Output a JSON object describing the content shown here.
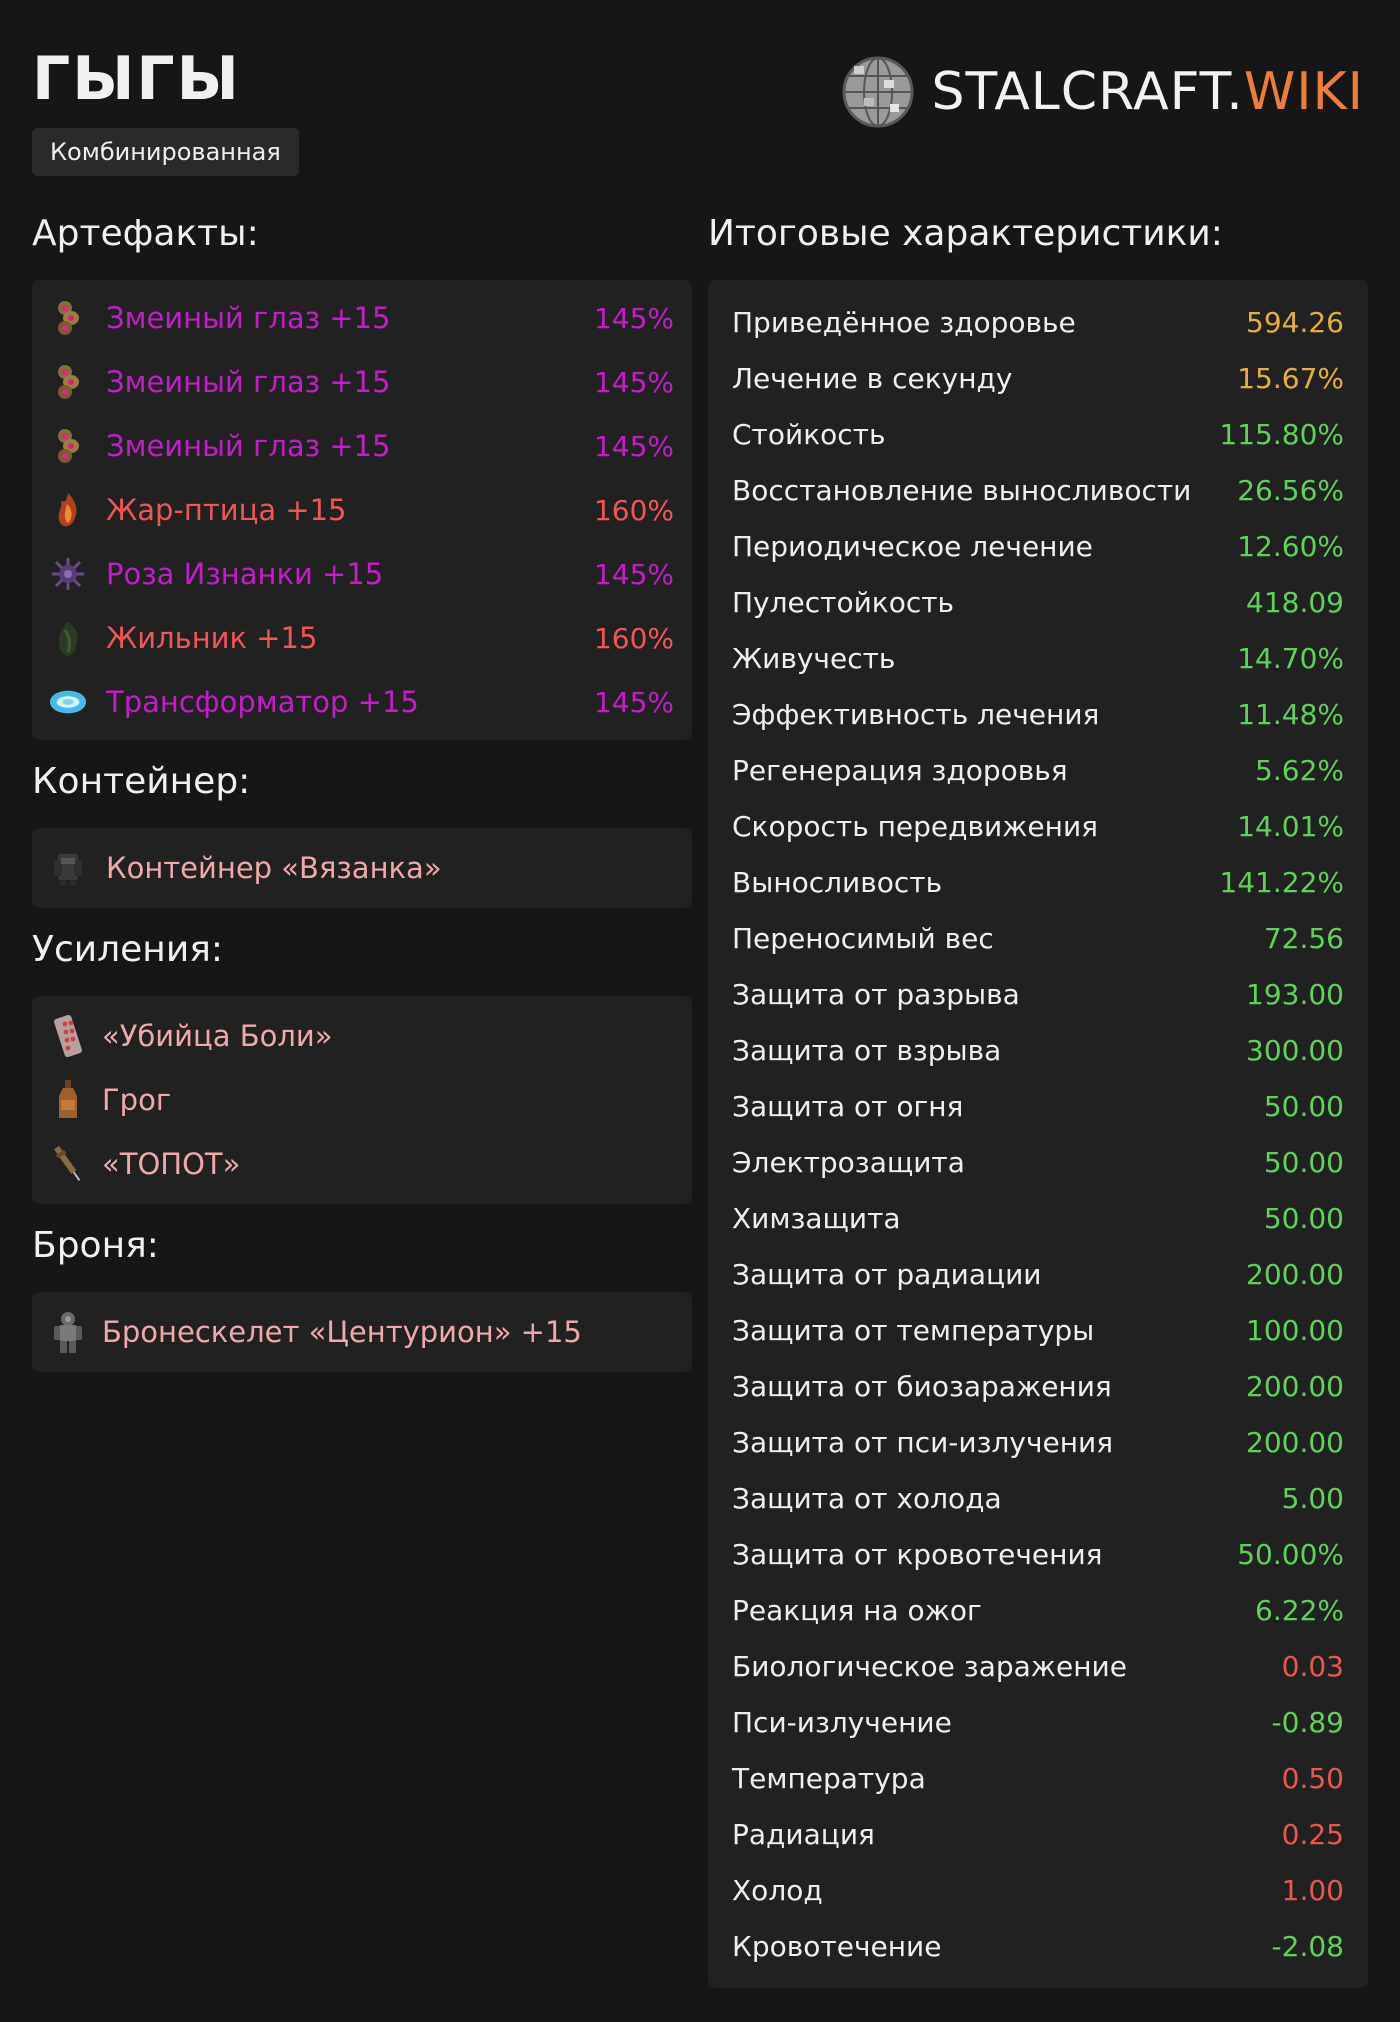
{
  "header": {
    "title": "ГЫГЫ",
    "tag": "Комбинированная",
    "logo_main": "STALCRAFT.",
    "logo_accent": "WIKI"
  },
  "artifacts": {
    "title": "Артефакты:",
    "items": [
      {
        "name": "Змеиный глаз +15",
        "percent": "145%",
        "color": "#c21ec8",
        "icon": "snake-eye-icon"
      },
      {
        "name": "Змеиный глаз +15",
        "percent": "145%",
        "color": "#c21ec8",
        "icon": "snake-eye-icon"
      },
      {
        "name": "Змеиный глаз +15",
        "percent": "145%",
        "color": "#c21ec8",
        "icon": "snake-eye-icon"
      },
      {
        "name": "Жар-птица +15",
        "percent": "160%",
        "color": "#f05656",
        "icon": "firebird-icon"
      },
      {
        "name": "Роза Изнанки +15",
        "percent": "145%",
        "color": "#c21ec8",
        "icon": "rose-icon"
      },
      {
        "name": "Жильник +15",
        "percent": "160%",
        "color": "#f05656",
        "icon": "zhilnik-icon"
      },
      {
        "name": "Трансформатор +15",
        "percent": "145%",
        "color": "#c21ec8",
        "icon": "transformer-icon"
      }
    ]
  },
  "container": {
    "title": "Контейнер:",
    "name": "Контейнер «Вязанка»",
    "icon": "container-icon"
  },
  "boosts": {
    "title": "Усиления:",
    "items": [
      {
        "name": "«Убийца Боли»",
        "icon": "pills-icon"
      },
      {
        "name": "Грог",
        "icon": "bottle-icon"
      },
      {
        "name": "«ТОПОТ»",
        "icon": "syringe-icon"
      }
    ]
  },
  "armor": {
    "title": "Броня:",
    "name": "Бронескелет «Центурион» +15",
    "icon": "armor-icon"
  },
  "stats": {
    "title": "Итоговые характеристики:",
    "colors": {
      "gold": "#e4b03a",
      "green": "#5fd25a",
      "red": "#e65a4e"
    },
    "items": [
      {
        "label": "Приведённое здоровье",
        "value": "594.26",
        "tone": "gold"
      },
      {
        "label": "Лечение в секунду",
        "value": "15.67%",
        "tone": "gold"
      },
      {
        "label": "Стойкость",
        "value": "115.80%",
        "tone": "green"
      },
      {
        "label": "Восстановление выносливости",
        "value": "26.56%",
        "tone": "green"
      },
      {
        "label": "Периодическое лечение",
        "value": "12.60%",
        "tone": "green"
      },
      {
        "label": "Пулестойкость",
        "value": "418.09",
        "tone": "green"
      },
      {
        "label": "Живучесть",
        "value": "14.70%",
        "tone": "green"
      },
      {
        "label": "Эффективность лечения",
        "value": "11.48%",
        "tone": "green"
      },
      {
        "label": "Регенерация здоровья",
        "value": "5.62%",
        "tone": "green"
      },
      {
        "label": "Скорость передвижения",
        "value": "14.01%",
        "tone": "green"
      },
      {
        "label": "Выносливость",
        "value": "141.22%",
        "tone": "green"
      },
      {
        "label": "Переносимый вес",
        "value": "72.56",
        "tone": "green"
      },
      {
        "label": "Защита от разрыва",
        "value": "193.00",
        "tone": "green"
      },
      {
        "label": "Защита от взрыва",
        "value": "300.00",
        "tone": "green"
      },
      {
        "label": "Защита от огня",
        "value": "50.00",
        "tone": "green"
      },
      {
        "label": "Электрозащита",
        "value": "50.00",
        "tone": "green"
      },
      {
        "label": "Химзащита",
        "value": "50.00",
        "tone": "green"
      },
      {
        "label": "Защита от радиации",
        "value": "200.00",
        "tone": "green"
      },
      {
        "label": "Защита от температуры",
        "value": "100.00",
        "tone": "green"
      },
      {
        "label": "Защита от биозаражения",
        "value": "200.00",
        "tone": "green"
      },
      {
        "label": "Защита от пси-излучения",
        "value": "200.00",
        "tone": "green"
      },
      {
        "label": "Защита от холода",
        "value": "5.00",
        "tone": "green"
      },
      {
        "label": "Защита от кровотечения",
        "value": "50.00%",
        "tone": "green"
      },
      {
        "label": "Реакция на ожог",
        "value": "6.22%",
        "tone": "green"
      },
      {
        "label": "Биологическое заражение",
        "value": "0.03",
        "tone": "red"
      },
      {
        "label": "Пси-излучение",
        "value": "-0.89",
        "tone": "green"
      },
      {
        "label": "Температура",
        "value": "0.50",
        "tone": "red"
      },
      {
        "label": "Радиация",
        "value": "0.25",
        "tone": "red"
      },
      {
        "label": "Холод",
        "value": "1.00",
        "tone": "red"
      },
      {
        "label": "Кровотечение",
        "value": "-2.08",
        "tone": "green"
      }
    ]
  }
}
